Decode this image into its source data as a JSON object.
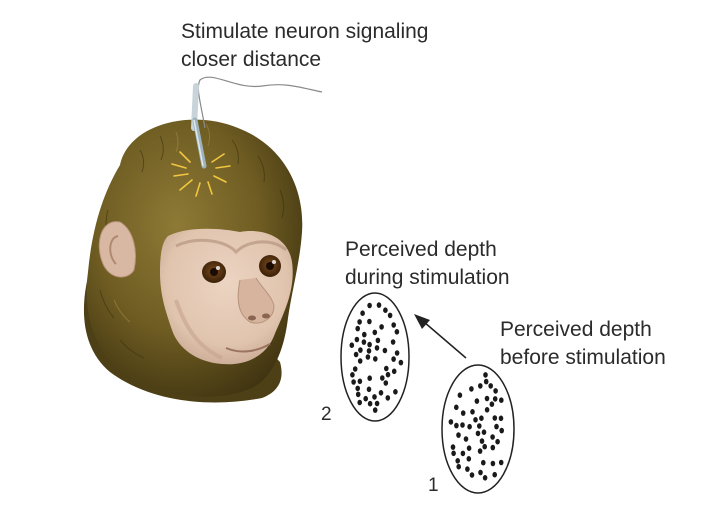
{
  "labels": {
    "stimulate_line1": "Stimulate neuron signaling",
    "stimulate_line2": "closer distance",
    "during_line1": "Perceived depth",
    "during_line2": "during stimulation",
    "before_line1": "Perceived depth",
    "before_line2": "before stimulation",
    "num_during": "2",
    "num_before": "1"
  },
  "colors": {
    "fur_dark": "#4a3c14",
    "fur_mid": "#6e5c22",
    "fur_light": "#8e7a36",
    "face": "#e2c8b4",
    "face_shadow": "#c8a892",
    "eye": "#5a3514",
    "electrode": "#9fb3bd",
    "spark": "#f2c640",
    "dot": "#1a1a1a"
  }
}
